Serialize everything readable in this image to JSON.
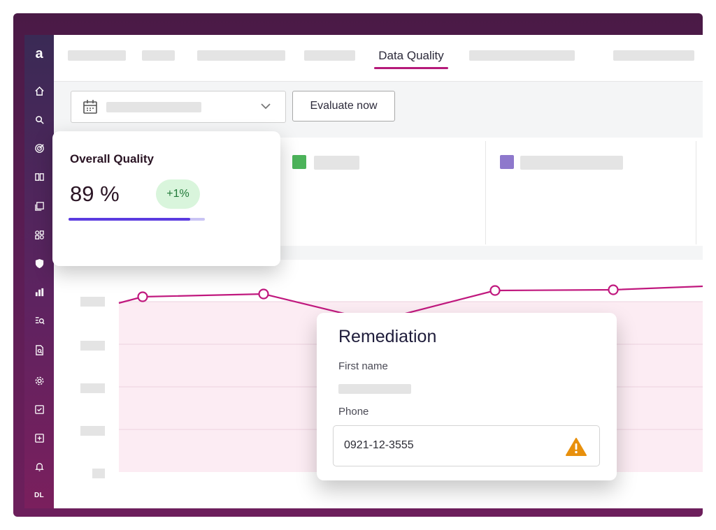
{
  "sidebar": {
    "logo": "a",
    "avatar": "DL",
    "icons": [
      "home-icon",
      "search-icon",
      "target-icon",
      "book-icon",
      "documents-icon",
      "shapes-icon",
      "shield-icon",
      "bar-chart-icon",
      "query-icon",
      "report-search-icon",
      "gear-icon",
      "checkbox-icon",
      "add-box-icon",
      "bell-icon"
    ]
  },
  "header": {
    "active_tab": "Data Quality"
  },
  "toolbar": {
    "evaluate_label": "Evaluate now"
  },
  "legend": {
    "colors": [
      "#4cb35a",
      "#8e78cc"
    ]
  },
  "quality_card": {
    "title": "Overall Quality",
    "value": "89 %",
    "change": "+1%",
    "progress_fraction": 0.89
  },
  "remediation": {
    "title": "Remediation",
    "first_name_label": "First name",
    "phone_label": "Phone",
    "phone_value": "0921-12-3555"
  },
  "colors": {
    "accent": "#b5197a",
    "line": "#c0187e",
    "progress": "#5b3be0",
    "badge_bg": "#d9f5dc",
    "warning": "#e8900c"
  }
}
